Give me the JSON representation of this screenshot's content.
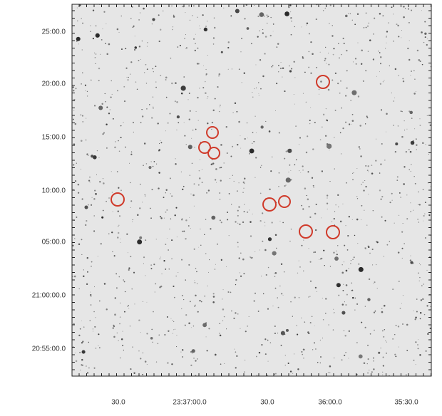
{
  "y_axis_labels": [
    "25:00.0",
    "20:00.0",
    "15:00.0",
    "10:00.0",
    "05:00.0",
    "21:00:00.0",
    "20:55:00.0"
  ],
  "x_axis_labels": [
    "30.0",
    "23:37:00.0",
    "30.0",
    "36:00.0",
    "35:30.0"
  ]
}
